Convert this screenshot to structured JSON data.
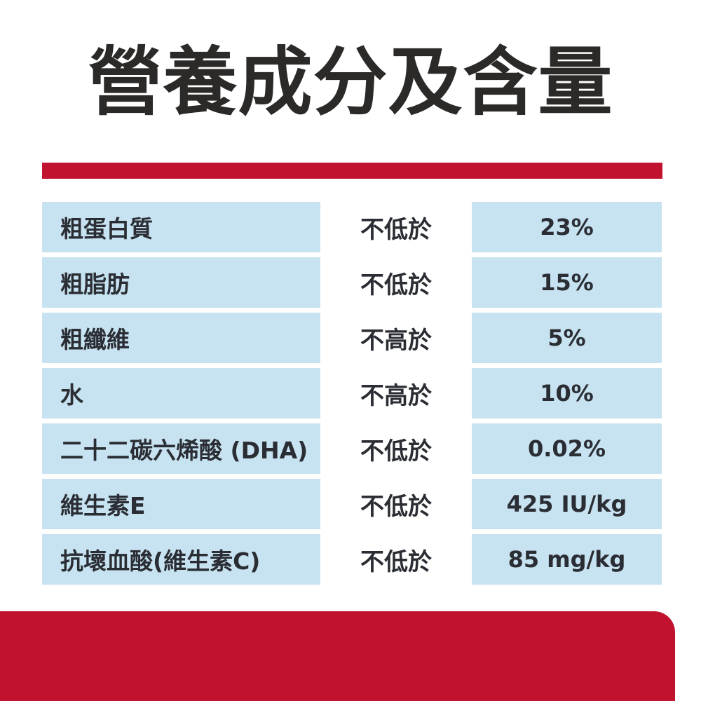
{
  "title": "營養成分及含量",
  "colors": {
    "red": "#c1122f",
    "row_blue": "#c7e2f0",
    "text_dark": "#2a2d33",
    "title_dark": "#2b2a28",
    "page_bg": "#ffffff"
  },
  "chart_data": {
    "type": "table",
    "title": "營養成分及含量",
    "columns": [],
    "rows": [
      {
        "name": "粗蛋白質",
        "condition": "不低於",
        "value": "23%"
      },
      {
        "name": "粗脂肪",
        "condition": "不低於",
        "value": "15%"
      },
      {
        "name": "粗纖維",
        "condition": "不高於",
        "value": "5%"
      },
      {
        "name": "水",
        "condition": "不高於",
        "value": "10%"
      },
      {
        "name": "二十二碳六烯酸 (DHA)",
        "condition": "不低於",
        "value": "0.02%"
      },
      {
        "name": "維生素E",
        "condition": "不低於",
        "value": "425 IU/kg"
      },
      {
        "name": "抗壞血酸(維生素C)",
        "condition": "不低於",
        "value": "85 mg/kg"
      }
    ]
  }
}
